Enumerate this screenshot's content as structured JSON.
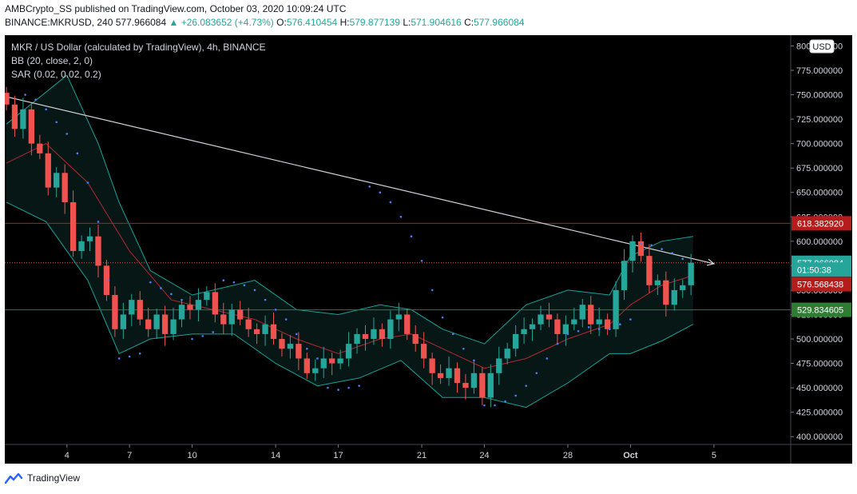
{
  "header": {
    "publisher_line": "AMBCrypto_SS published on TradingView.com, October 03, 2020 10:09:24 UTC",
    "symbol": "BINANCE:MKRUSD,",
    "interval": "240",
    "last_price": "577.966084",
    "change": "▲ +26.083652 (+4.73%)",
    "ohlc": {
      "o_label": "O:",
      "o": "576.410454",
      "h_label": "H:",
      "h": "579.877139",
      "l_label": "L:",
      "l": "571.904616",
      "c_label": "C:",
      "c": "577.966084"
    }
  },
  "legend": {
    "title": "MKR / US Dollar (calculated by TradingView), 4h, BINANCE",
    "bb": "BB (20, close, 2, 0)",
    "sar": "SAR (0.02, 0.02, 0.2)"
  },
  "footer": {
    "brand": "TradingView"
  },
  "colors": {
    "background": "#000000",
    "up": "#26a69a",
    "down": "#ef5350",
    "bb_basis": "#b22833",
    "bb_band": "#15a39a",
    "sar": "#4d7dff",
    "trendline": "#cfd2d6",
    "resistance": "#b71c1c",
    "support": "#2e7d32"
  },
  "chart_data": {
    "type": "candlestick",
    "currency_label": "USD",
    "ylim": [
      392,
      811
    ],
    "y_ticks": [
      400,
      425,
      450,
      475,
      500,
      525,
      550,
      575,
      600,
      625,
      650,
      675,
      700,
      725,
      750,
      775,
      800
    ],
    "y_tick_labels": [
      "400.000000",
      "425.000000",
      "450.000000",
      "475.000000",
      "500.000000",
      "525.000000",
      "550.000000",
      "575.000000",
      "600.000000",
      "625.000000",
      "650.000000",
      "675.000000",
      "700.000000",
      "725.000000",
      "750.000000",
      "775.000000",
      "800.000000"
    ],
    "x_tick_labels": [
      "4",
      "7",
      "10",
      "14",
      "17",
      "21",
      "24",
      "28",
      "Oct",
      "5"
    ],
    "x_tick_days": [
      4,
      7,
      10,
      14,
      17,
      21,
      24,
      28,
      31,
      35
    ],
    "x_range_days": [
      1.1,
      38.6
    ],
    "horizontal_lines": [
      {
        "price": 618.38292,
        "label": "618.382920",
        "color": "#b71c1c"
      },
      {
        "price": 529.834605,
        "label": "529.834605",
        "color": "#2e7d32"
      }
    ],
    "price_labels": [
      {
        "price": 577.966084,
        "label": "577.966084",
        "color": "#26a69a"
      },
      {
        "price": 571.0,
        "label": "01:50:38",
        "color": "#26a69a"
      },
      {
        "price": 556.0,
        "label": "576.568438",
        "color": "#b71c1c"
      },
      {
        "price": 529.834605,
        "label": "529.834605",
        "color": "#2e7d32"
      }
    ],
    "trendline": {
      "from": [
        1.1,
        748
      ],
      "to": [
        35,
        577
      ]
    },
    "candle_interval_hours": 4,
    "closes": [
      {
        "day": 1.1,
        "close": 740
      },
      {
        "day": 1.5,
        "close": 715
      },
      {
        "day": 1.9,
        "close": 735
      },
      {
        "day": 2.3,
        "close": 700
      },
      {
        "day": 2.7,
        "close": 690
      },
      {
        "day": 3.1,
        "close": 655
      },
      {
        "day": 3.5,
        "close": 670
      },
      {
        "day": 3.9,
        "close": 640
      },
      {
        "day": 4.3,
        "close": 590
      },
      {
        "day": 4.7,
        "close": 600
      },
      {
        "day": 5.1,
        "close": 605
      },
      {
        "day": 5.5,
        "close": 575
      },
      {
        "day": 5.9,
        "close": 545
      },
      {
        "day": 6.3,
        "close": 510
      },
      {
        "day": 6.7,
        "close": 525
      },
      {
        "day": 7.1,
        "close": 540
      },
      {
        "day": 7.5,
        "close": 520
      },
      {
        "day": 7.9,
        "close": 510
      },
      {
        "day": 8.3,
        "close": 525
      },
      {
        "day": 8.7,
        "close": 505
      },
      {
        "day": 9.1,
        "close": 520
      },
      {
        "day": 9.5,
        "close": 535
      },
      {
        "day": 9.9,
        "close": 530
      },
      {
        "day": 10.3,
        "close": 540
      },
      {
        "day": 10.7,
        "close": 548
      },
      {
        "day": 11.1,
        "close": 525
      },
      {
        "day": 11.5,
        "close": 515
      },
      {
        "day": 11.9,
        "close": 530
      },
      {
        "day": 12.3,
        "close": 520
      },
      {
        "day": 12.7,
        "close": 510
      },
      {
        "day": 13.1,
        "close": 505
      },
      {
        "day": 13.5,
        "close": 515
      },
      {
        "day": 13.9,
        "close": 500
      },
      {
        "day": 14.3,
        "close": 490
      },
      {
        "day": 14.7,
        "close": 495
      },
      {
        "day": 15.1,
        "close": 480
      },
      {
        "day": 15.5,
        "close": 465
      },
      {
        "day": 15.9,
        "close": 470
      },
      {
        "day": 16.3,
        "close": 480
      },
      {
        "day": 16.7,
        "close": 475
      },
      {
        "day": 17.1,
        "close": 480
      },
      {
        "day": 17.5,
        "close": 495
      },
      {
        "day": 17.9,
        "close": 505
      },
      {
        "day": 18.3,
        "close": 500
      },
      {
        "day": 18.7,
        "close": 510
      },
      {
        "day": 19.1,
        "close": 500
      },
      {
        "day": 19.5,
        "close": 520
      },
      {
        "day": 19.9,
        "close": 525
      },
      {
        "day": 20.3,
        "close": 505
      },
      {
        "day": 20.7,
        "close": 495
      },
      {
        "day": 21.1,
        "close": 480
      },
      {
        "day": 21.5,
        "close": 465
      },
      {
        "day": 21.9,
        "close": 460
      },
      {
        "day": 22.3,
        "close": 470
      },
      {
        "day": 22.7,
        "close": 455
      },
      {
        "day": 23.1,
        "close": 450
      },
      {
        "day": 23.5,
        "close": 465
      },
      {
        "day": 23.9,
        "close": 440
      },
      {
        "day": 24.3,
        "close": 465
      },
      {
        "day": 24.7,
        "close": 480
      },
      {
        "day": 25.1,
        "close": 490
      },
      {
        "day": 25.5,
        "close": 505
      },
      {
        "day": 25.9,
        "close": 510
      },
      {
        "day": 26.3,
        "close": 515
      },
      {
        "day": 26.7,
        "close": 525
      },
      {
        "day": 27.1,
        "close": 520
      },
      {
        "day": 27.5,
        "close": 505
      },
      {
        "day": 27.9,
        "close": 515
      },
      {
        "day": 28.3,
        "close": 520
      },
      {
        "day": 28.7,
        "close": 535
      },
      {
        "day": 29.1,
        "close": 515
      },
      {
        "day": 29.5,
        "close": 520
      },
      {
        "day": 29.9,
        "close": 510
      },
      {
        "day": 30.3,
        "close": 550
      },
      {
        "day": 30.7,
        "close": 580
      },
      {
        "day": 31.1,
        "close": 600
      },
      {
        "day": 31.5,
        "close": 585
      },
      {
        "day": 31.9,
        "close": 555
      },
      {
        "day": 32.3,
        "close": 560
      },
      {
        "day": 32.7,
        "close": 535
      },
      {
        "day": 33.1,
        "close": 550
      },
      {
        "day": 33.5,
        "close": 555
      },
      {
        "day": 33.9,
        "close": 577.97
      }
    ],
    "bb_upper": [
      [
        1.1,
        720
      ],
      [
        4.0,
        770
      ],
      [
        5.5,
        700
      ],
      [
        6.5,
        640
      ],
      [
        8,
        570
      ],
      [
        10,
        545
      ],
      [
        13,
        560
      ],
      [
        15,
        530
      ],
      [
        17,
        525
      ],
      [
        19,
        535
      ],
      [
        20.5,
        530
      ],
      [
        22,
        510
      ],
      [
        24,
        495
      ],
      [
        26,
        535
      ],
      [
        28,
        550
      ],
      [
        30,
        545
      ],
      [
        31,
        585
      ],
      [
        32.5,
        600
      ],
      [
        34,
        605
      ]
    ],
    "bb_basis": [
      [
        1.1,
        680
      ],
      [
        3,
        700
      ],
      [
        5,
        660
      ],
      [
        7,
        590
      ],
      [
        9,
        540
      ],
      [
        11,
        530
      ],
      [
        13,
        520
      ],
      [
        15,
        500
      ],
      [
        17,
        485
      ],
      [
        19,
        500
      ],
      [
        20.5,
        505
      ],
      [
        22,
        490
      ],
      [
        24,
        470
      ],
      [
        26,
        480
      ],
      [
        28,
        500
      ],
      [
        30,
        515
      ],
      [
        31,
        535
      ],
      [
        32.5,
        555
      ],
      [
        34,
        565
      ]
    ],
    "bb_lower": [
      [
        1.1,
        640
      ],
      [
        3,
        620
      ],
      [
        5,
        560
      ],
      [
        6.5,
        485
      ],
      [
        8,
        500
      ],
      [
        10,
        505
      ],
      [
        12,
        505
      ],
      [
        14,
        475
      ],
      [
        16,
        452
      ],
      [
        18,
        460
      ],
      [
        20,
        478
      ],
      [
        22,
        440
      ],
      [
        24,
        440
      ],
      [
        26,
        430
      ],
      [
        28,
        455
      ],
      [
        30,
        485
      ],
      [
        31,
        485
      ],
      [
        32.5,
        498
      ],
      [
        34,
        515
      ]
    ],
    "sar": [
      [
        2,
        750
      ],
      [
        2.5,
        745
      ],
      [
        3,
        735
      ],
      [
        3.5,
        722
      ],
      [
        4,
        710
      ],
      [
        4.5,
        690
      ],
      [
        5,
        660
      ],
      [
        5.5,
        620
      ],
      [
        6,
        560
      ],
      [
        6.5,
        480
      ],
      [
        7,
        482
      ],
      [
        7.5,
        485
      ],
      [
        8,
        558
      ],
      [
        8.5,
        552
      ],
      [
        9,
        546
      ],
      [
        9.5,
        540
      ],
      [
        10,
        500
      ],
      [
        10.5,
        503
      ],
      [
        11,
        507
      ],
      [
        11.5,
        560
      ],
      [
        12,
        558
      ],
      [
        12.5,
        555
      ],
      [
        13,
        550
      ],
      [
        13.5,
        540
      ],
      [
        14,
        530
      ],
      [
        14.5,
        520
      ],
      [
        15,
        505
      ],
      [
        15.5,
        490
      ],
      [
        16,
        480
      ],
      [
        16.5,
        450
      ],
      [
        17,
        448
      ],
      [
        17.5,
        450
      ],
      [
        18,
        452
      ],
      [
        18.5,
        656
      ],
      [
        19,
        650
      ],
      [
        19.5,
        640
      ],
      [
        20,
        625
      ],
      [
        20.5,
        605
      ],
      [
        21,
        580
      ],
      [
        21.5,
        550
      ],
      [
        22,
        522
      ],
      [
        22.5,
        505
      ],
      [
        23,
        490
      ],
      [
        23.5,
        478
      ],
      [
        24,
        432
      ],
      [
        24.5,
        432
      ],
      [
        25,
        436
      ],
      [
        25.5,
        442
      ],
      [
        26,
        452
      ],
      [
        26.5,
        465
      ],
      [
        27,
        480
      ],
      [
        27.5,
        495
      ],
      [
        28,
        505
      ],
      [
        28.5,
        508
      ],
      [
        29,
        512
      ],
      [
        29.5,
        510
      ],
      [
        30,
        510
      ],
      [
        30.5,
        515
      ],
      [
        31,
        520
      ],
      [
        31.5,
        598
      ],
      [
        32,
        596
      ],
      [
        32.5,
        592
      ],
      [
        33,
        588
      ],
      [
        33.5,
        582
      ]
    ]
  }
}
